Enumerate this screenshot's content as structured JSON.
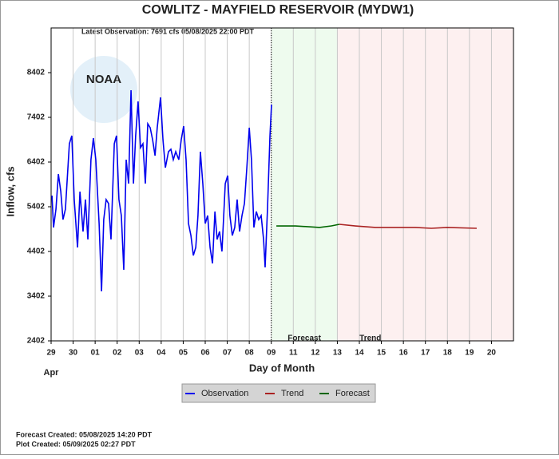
{
  "chart_data": {
    "type": "line",
    "title": "COWLITZ - MAYFIELD RESERVOIR  (MYDW1)",
    "subtitle": "Latest Observation: 7691 cfs 05/08/2025 22:00 PDT",
    "ylabel": "Inflow, cfs",
    "xlabel": "Day of Month",
    "month_label": "Apr",
    "logo_text": "NOAA",
    "footer": [
      "Forecast Created: 05/08/2025 14:20 PDT",
      "Plot Created: 05/09/2025 02:27 PDT"
    ],
    "grid": "x",
    "xlim": [
      0,
      21
    ],
    "ylim": [
      2402,
      9402
    ],
    "yticks": [
      2402,
      3402,
      4402,
      5402,
      6402,
      7402,
      8402
    ],
    "xticks": [
      {
        "value": 0,
        "label": "29"
      },
      {
        "value": 1,
        "label": "30"
      },
      {
        "value": 2,
        "label": "01"
      },
      {
        "value": 3,
        "label": "02"
      },
      {
        "value": 4,
        "label": "03"
      },
      {
        "value": 5,
        "label": "04"
      },
      {
        "value": 6,
        "label": "05"
      },
      {
        "value": 7,
        "label": "06"
      },
      {
        "value": 8,
        "label": "07"
      },
      {
        "value": 9,
        "label": "08"
      },
      {
        "value": 10,
        "label": "09"
      },
      11,
      12,
      13,
      14,
      15,
      16,
      17,
      18,
      19,
      20
    ],
    "regions": [
      {
        "label": "Forecast",
        "start": 10,
        "end": 13,
        "color": "#eefbee"
      },
      {
        "label": "Trend",
        "start": 13,
        "end": 21,
        "color": "#fdf0f0"
      }
    ],
    "series": [
      {
        "name": "Observation",
        "color": "#0000ee",
        "x": [
          0.04,
          0.11,
          0.22,
          0.33,
          0.44,
          0.54,
          0.65,
          0.83,
          0.94,
          1.05,
          1.2,
          1.31,
          1.45,
          1.56,
          1.67,
          1.81,
          1.92,
          2.03,
          2.18,
          2.29,
          2.39,
          2.5,
          2.61,
          2.72,
          2.87,
          2.97,
          3.08,
          3.19,
          3.3,
          3.41,
          3.52,
          3.63,
          3.74,
          3.84,
          3.95,
          4.06,
          4.17,
          4.28,
          4.39,
          4.5,
          4.61,
          4.72,
          4.82,
          4.97,
          5.08,
          5.19,
          5.33,
          5.44,
          5.55,
          5.66,
          5.8,
          5.91,
          6.02,
          6.13,
          6.24,
          6.35,
          6.46,
          6.57,
          6.67,
          6.78,
          6.89,
          7.0,
          7.11,
          7.22,
          7.33,
          7.44,
          7.54,
          7.65,
          7.76,
          7.91,
          8.02,
          8.12,
          8.23,
          8.34,
          8.45,
          8.56,
          8.67,
          8.78,
          8.89,
          9.0,
          9.1,
          9.21,
          9.32,
          9.43,
          9.54,
          9.65,
          9.72,
          9.83,
          9.94,
          10.01
        ],
        "values": [
          5652,
          4938,
          5348,
          6134,
          5741,
          5116,
          5348,
          6812,
          6991,
          5563,
          4491,
          5741,
          4848,
          5563,
          4670,
          6455,
          6937,
          6455,
          5027,
          3509,
          5116,
          5563,
          5473,
          4670,
          6812,
          6991,
          5563,
          5205,
          3991,
          6455,
          5920,
          8009,
          5920,
          6991,
          7759,
          6723,
          6812,
          5920,
          7259,
          7170,
          6902,
          6545,
          7170,
          7848,
          6902,
          6277,
          6634,
          6688,
          6455,
          6634,
          6455,
          6902,
          7205,
          6455,
          5027,
          4759,
          4312,
          4491,
          5205,
          6634,
          5920,
          5027,
          5205,
          4491,
          4134,
          5295,
          4670,
          4848,
          4402,
          5920,
          6098,
          5205,
          4759,
          4938,
          5563,
          4848,
          5205,
          5473,
          6277,
          7170,
          6455,
          4938,
          5295,
          5116,
          5205,
          4670,
          4045,
          5384,
          6991,
          7688
        ]
      },
      {
        "name": "Trend",
        "color": "#aa2222",
        "x": [
          13.09,
          13.82,
          14.73,
          16.54,
          17.27,
          17.99,
          19.33
        ],
        "values": [
          5009,
          4973,
          4938,
          4938,
          4920,
          4938,
          4920
        ]
      },
      {
        "name": "Forecast",
        "color": "#006600",
        "x": [
          10.23,
          11.1,
          12.19,
          12.73,
          13.09
        ],
        "values": [
          4973,
          4973,
          4938,
          4973,
          5009
        ]
      }
    ]
  }
}
